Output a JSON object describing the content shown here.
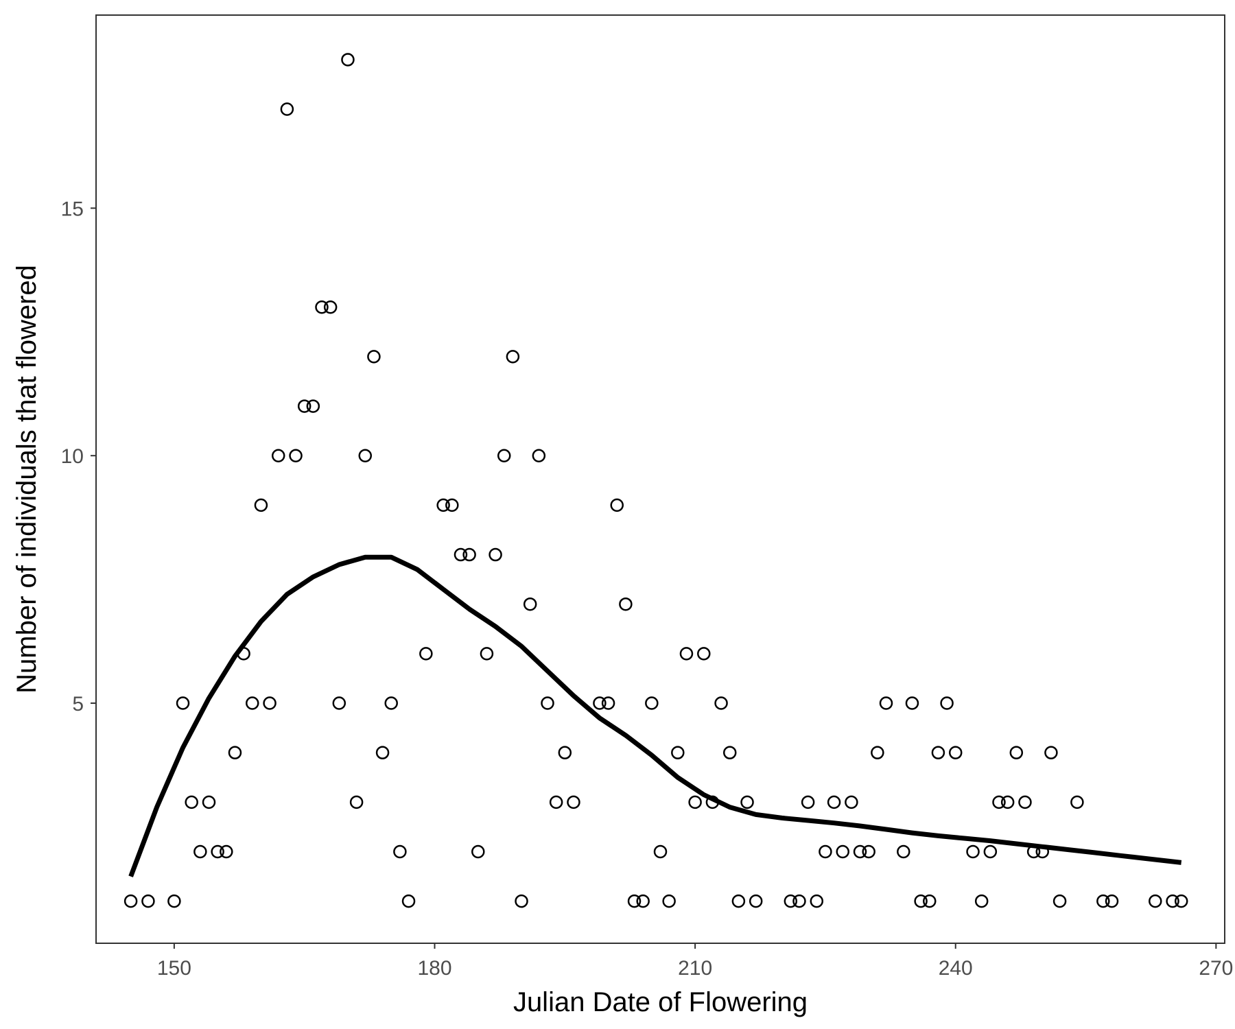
{
  "chart_data": {
    "type": "scatter",
    "title": "",
    "xlabel": "Julian Date of Flowering",
    "ylabel": "Number of individuals that flowered",
    "xlim": [
      141,
      271
    ],
    "ylim": [
      0.15,
      18.9
    ],
    "xticks": [
      150,
      180,
      210,
      240,
      270
    ],
    "yticks": [
      5,
      10,
      15
    ],
    "xtick_labels": [
      "150",
      "180",
      "210",
      "240",
      "270"
    ],
    "ytick_labels": [
      "5",
      "10",
      "15"
    ],
    "grid": false,
    "legend": "none",
    "point_color": "#000000",
    "line_color": "#000000",
    "series": [
      {
        "kind": "points",
        "x": [
          145,
          147,
          150,
          151,
          152,
          153,
          154,
          155,
          156,
          157,
          158,
          159,
          160,
          161,
          162,
          163,
          164,
          165,
          166,
          167,
          168,
          169,
          170,
          171,
          172,
          173,
          174,
          175,
          176,
          177,
          179,
          181,
          182,
          183,
          184,
          185,
          186,
          187,
          188,
          189,
          190,
          191,
          192,
          193,
          194,
          195,
          196,
          199,
          200,
          201,
          202,
          203,
          204,
          205,
          206,
          207,
          208,
          209,
          210,
          211,
          212,
          213,
          214,
          215,
          216,
          217,
          221,
          222,
          224,
          223,
          225,
          226,
          227,
          228,
          229,
          230,
          231,
          232,
          234,
          235,
          236,
          237,
          238,
          239,
          240,
          242,
          243,
          244,
          245,
          246,
          247,
          248,
          249,
          250,
          251,
          252,
          254,
          257,
          258,
          263,
          265,
          266
        ],
        "y": [
          1,
          1,
          1,
          5,
          3,
          2,
          3,
          2,
          2,
          4,
          6,
          5,
          9,
          5,
          10,
          17,
          10,
          11,
          11,
          13,
          13,
          5,
          18,
          3,
          10,
          12,
          4,
          5,
          2,
          1,
          6,
          9,
          9,
          8,
          8,
          2,
          6,
          8,
          10,
          12,
          1,
          7,
          10,
          5,
          3,
          4,
          3,
          5,
          5,
          9,
          7,
          1,
          1,
          5,
          2,
          1,
          4,
          6,
          3,
          6,
          3,
          5,
          4,
          1,
          3,
          1,
          1,
          1,
          1,
          3,
          2,
          3,
          2,
          3,
          2,
          2,
          4,
          5,
          2,
          5,
          1,
          1,
          4,
          5,
          4,
          2,
          1,
          2,
          3,
          3,
          4,
          3,
          2,
          2,
          4,
          1,
          3,
          1,
          1,
          1,
          1,
          1
        ]
      },
      {
        "kind": "smooth",
        "x": [
          145,
          148,
          151,
          154,
          157,
          160,
          163,
          166,
          169,
          172,
          175,
          178,
          181,
          184,
          187,
          190,
          193,
          196,
          199,
          202,
          205,
          208,
          211,
          214,
          217,
          220,
          223,
          226,
          229,
          232,
          235,
          238,
          241,
          244,
          247,
          250,
          253,
          256,
          259,
          262,
          266
        ],
        "y": [
          1.5,
          2.9,
          4.1,
          5.1,
          5.95,
          6.65,
          7.2,
          7.55,
          7.8,
          7.95,
          7.95,
          7.7,
          7.3,
          6.9,
          6.55,
          6.15,
          5.65,
          5.15,
          4.7,
          4.35,
          3.95,
          3.5,
          3.15,
          2.9,
          2.75,
          2.68,
          2.63,
          2.58,
          2.52,
          2.45,
          2.38,
          2.32,
          2.27,
          2.22,
          2.16,
          2.1,
          2.04,
          1.98,
          1.92,
          1.86,
          1.78
        ]
      }
    ]
  }
}
